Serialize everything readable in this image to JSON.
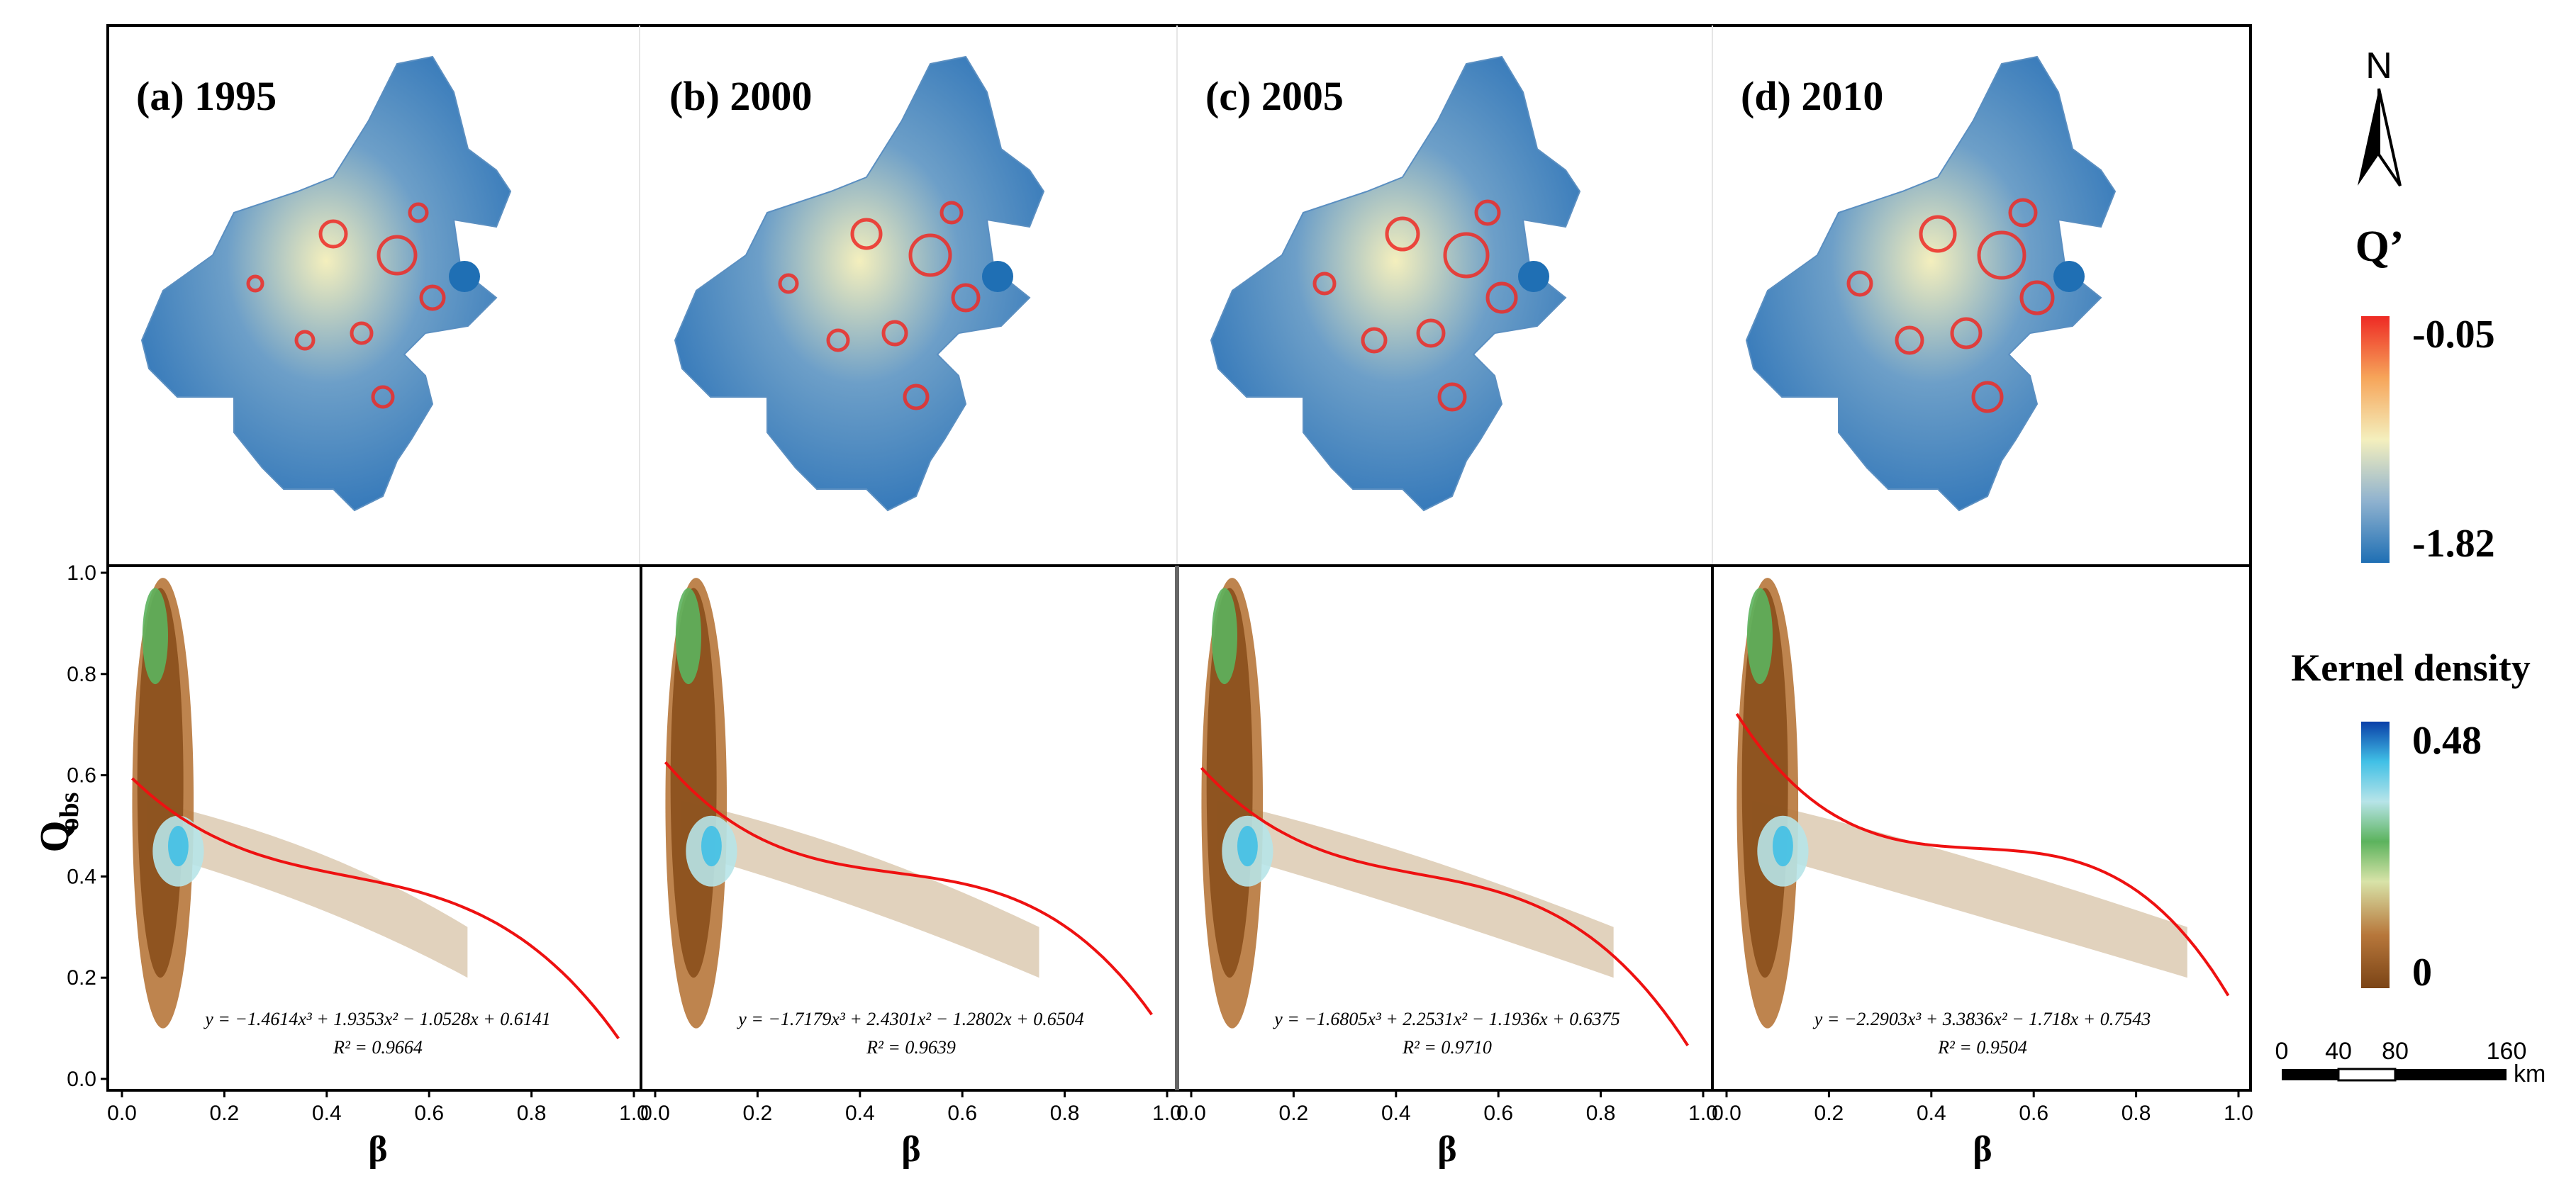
{
  "maps": {
    "panels": [
      {
        "label": "(a) 1995",
        "year": 1995
      },
      {
        "label": "(b) 2000",
        "year": 2000
      },
      {
        "label": "(c) 2005",
        "year": 2005
      },
      {
        "label": "(d) 2010",
        "year": 2010
      }
    ],
    "legend": {
      "title": "Q’",
      "max_label": "-0.05",
      "min_label": "-1.82"
    },
    "north_label": "N",
    "scale_bar": {
      "ticks": [
        "0",
        "40",
        "80",
        "160"
      ],
      "unit": "km"
    },
    "colors": {
      "low": "#1f6fb4",
      "mid": "#f4efbd",
      "high": "#ee2a24"
    }
  },
  "density_legend": {
    "title": "Kernel density",
    "max_label": "0.48",
    "min_label": "0",
    "colors": [
      "#0a3fa8",
      "#41c0e6",
      "#b7e4e8",
      "#5cb35d",
      "#d8e3a8",
      "#b7773b",
      "#7b4416"
    ]
  },
  "chart_data": {
    "type": "scatter",
    "title": "",
    "xlabel": "β",
    "ylabel_main": "Q",
    "ylabel_sub": "obs",
    "xlim": [
      0,
      1
    ],
    "ylim": [
      0,
      1
    ],
    "xticks": [
      "0.0",
      "0.2",
      "0.4",
      "0.6",
      "0.8",
      "1.0"
    ],
    "yticks": [
      "0.0",
      "0.2",
      "0.4",
      "0.6",
      "0.8",
      "1.0"
    ],
    "panels": [
      {
        "year": 1995,
        "equation": "y = −1.4614x³ + 1.9353x² − 1.0528x + 0.6141",
        "r2": "R² = 0.9664",
        "coefs": [
          -1.4614,
          1.9353,
          -1.0528,
          0.6141
        ],
        "fit_range": [
          0.02,
          0.97
        ]
      },
      {
        "year": 2000,
        "equation": "y = −1.7179x³ + 2.4301x² − 1.2802x + 0.6504",
        "r2": "R² = 0.9639",
        "coefs": [
          -1.7179,
          2.4301,
          -1.2802,
          0.6504
        ],
        "fit_range": [
          0.02,
          0.97
        ]
      },
      {
        "year": 2005,
        "equation": "y = −1.6805x³ + 2.2531x² − 1.1936x + 0.6375",
        "r2": "R² = 0.9710",
        "coefs": [
          -1.6805,
          2.2531,
          -1.1936,
          0.6375
        ],
        "fit_range": [
          0.02,
          0.97
        ]
      },
      {
        "year": 2010,
        "equation": "y = −2.2903x³ + 3.3836x² − 1.718x + 0.7543",
        "r2": "R² = 0.9504",
        "coefs": [
          -2.2903,
          3.3836,
          -1.718,
          0.7543
        ],
        "fit_range": [
          0.02,
          0.98
        ]
      }
    ],
    "fit_color": "#ee1111"
  }
}
